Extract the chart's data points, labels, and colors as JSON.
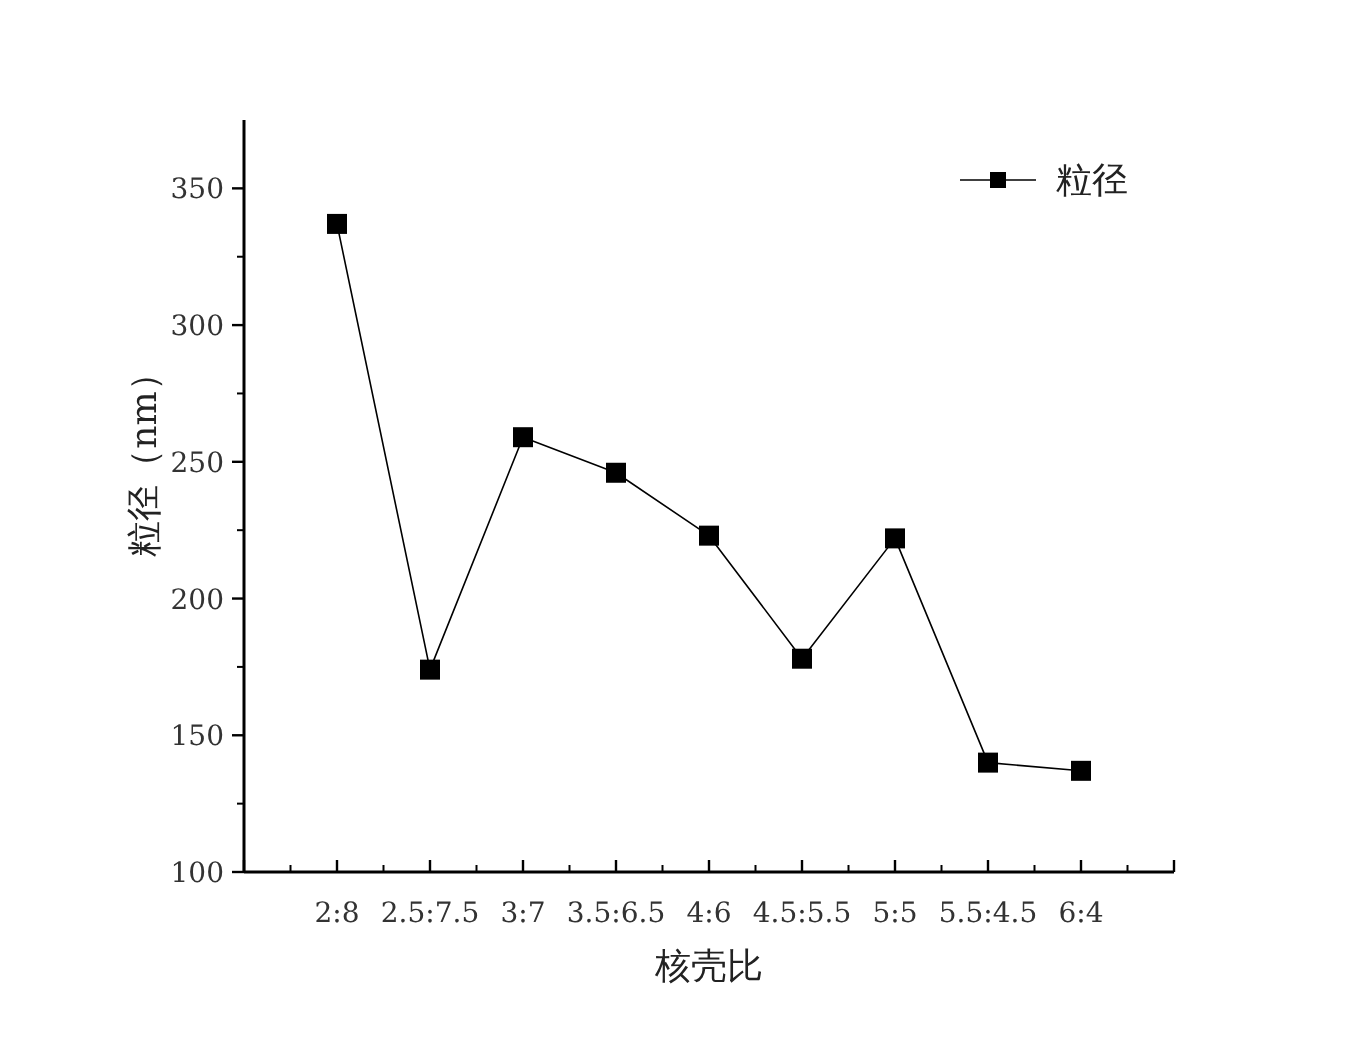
{
  "chart_data": {
    "type": "line",
    "xlabel": "核壳比",
    "ylabel": "粒径（nm）",
    "categories": [
      "2:8",
      "2.5:7.5",
      "3:7",
      "3.5:6.5",
      "4:6",
      "4.5:5.5",
      "5:5",
      "5.5:4.5",
      "6:4"
    ],
    "series": [
      {
        "name": "粒径",
        "color": "#000000",
        "values": [
          337,
          174,
          259,
          246,
          223,
          178,
          222,
          140,
          137
        ]
      }
    ],
    "ylim": [
      100,
      375
    ],
    "yticks": [
      100,
      150,
      200,
      250,
      300,
      350
    ],
    "marker": "square",
    "line_style": "solid",
    "legend": "top right"
  }
}
